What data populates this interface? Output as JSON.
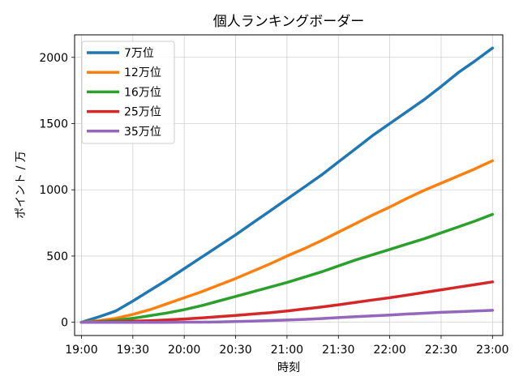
{
  "chart_data": {
    "type": "line",
    "title": "個人ランキングボーダー",
    "xlabel": "時刻",
    "ylabel": "ポイント / 万",
    "x_ticks": [
      "19:00",
      "19:30",
      "20:00",
      "20:30",
      "21:00",
      "21:30",
      "22:00",
      "22:30",
      "23:00"
    ],
    "x": [
      "19:00",
      "19:10",
      "19:20",
      "19:30",
      "19:40",
      "19:50",
      "20:00",
      "20:10",
      "20:20",
      "20:30",
      "20:40",
      "20:50",
      "21:00",
      "21:10",
      "21:20",
      "21:30",
      "21:40",
      "21:50",
      "22:00",
      "22:10",
      "22:20",
      "22:30",
      "22:40",
      "22:50",
      "23:00"
    ],
    "xlim": [
      "18:56",
      "23:06"
    ],
    "ylim": [
      -100,
      2170
    ],
    "y_ticks": [
      0,
      500,
      1000,
      1500,
      2000
    ],
    "grid": true,
    "legend_position": "top-left",
    "series": [
      {
        "name": "7万位",
        "color": "#1f77b4",
        "values": [
          0,
          40,
          85,
          160,
          240,
          320,
          405,
          490,
          575,
          660,
          750,
          840,
          930,
          1020,
          1110,
          1210,
          1310,
          1410,
          1500,
          1590,
          1680,
          1780,
          1885,
          1975,
          2070
        ]
      },
      {
        "name": "12万位",
        "color": "#ff7f0e",
        "values": [
          0,
          12,
          30,
          60,
          95,
          140,
          185,
          230,
          280,
          330,
          385,
          440,
          500,
          555,
          615,
          680,
          745,
          810,
          870,
          935,
          995,
          1050,
          1105,
          1160,
          1220
        ]
      },
      {
        "name": "16万位",
        "color": "#2ca02c",
        "values": [
          0,
          5,
          15,
          30,
          50,
          70,
          95,
          125,
          160,
          195,
          230,
          265,
          300,
          340,
          380,
          425,
          470,
          510,
          550,
          590,
          630,
          675,
          720,
          765,
          815
        ]
      },
      {
        "name": "25万位",
        "color": "#d62728",
        "values": [
          0,
          2,
          5,
          8,
          12,
          18,
          25,
          33,
          42,
          52,
          62,
          72,
          85,
          100,
          115,
          132,
          150,
          168,
          185,
          205,
          225,
          245,
          265,
          285,
          305
        ]
      },
      {
        "name": "35万位",
        "color": "#9467bd",
        "values": [
          0,
          0,
          0,
          0,
          0,
          0,
          1,
          1,
          2,
          5,
          9,
          13,
          17,
          22,
          28,
          35,
          42,
          48,
          55,
          62,
          68,
          75,
          80,
          85,
          90
        ]
      }
    ]
  }
}
